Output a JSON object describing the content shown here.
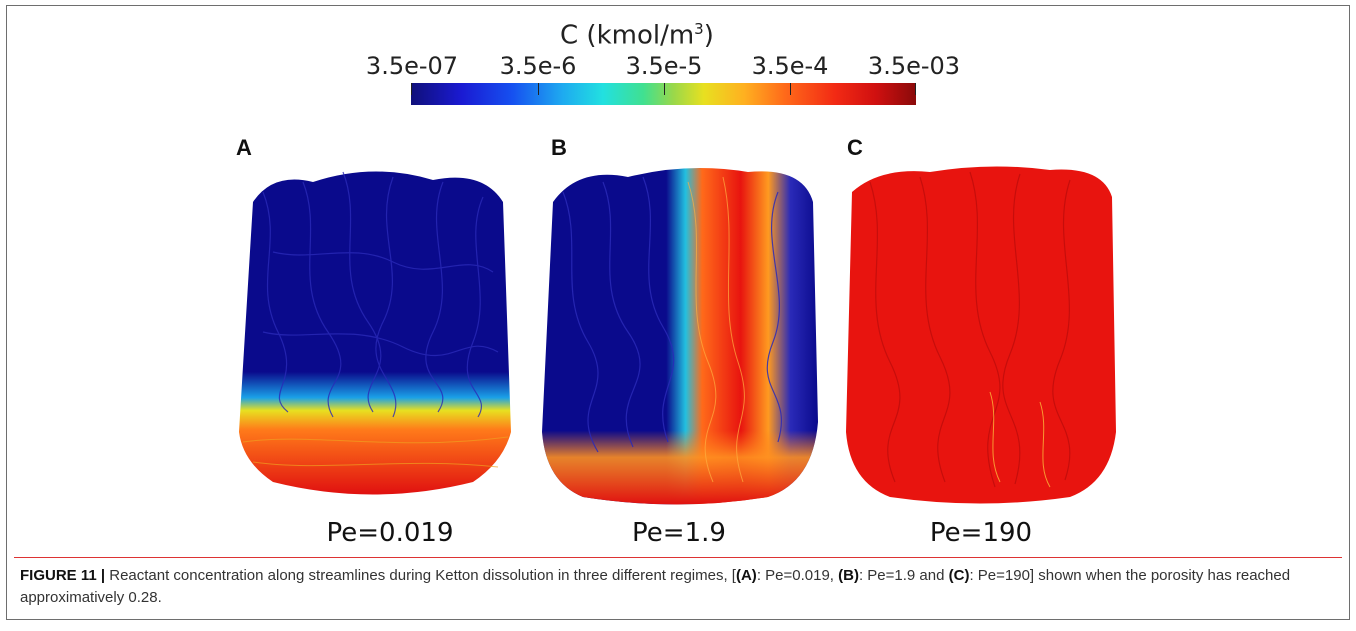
{
  "colorbar": {
    "title": "C (kmol/m",
    "title_sup": "3",
    "title_end": ")",
    "ticks": [
      "3.5e-07",
      "3.5e-6",
      "3.5e-5",
      "3.5e-4",
      "3.5e-03"
    ],
    "colormap": [
      "#10107a",
      "#1a1ad2",
      "#1650f0",
      "#1eaaf0",
      "#22e0e0",
      "#40e090",
      "#9ad84a",
      "#e8e020",
      "#ffb020",
      "#ff6a1a",
      "#f22a14",
      "#d01010",
      "#8a0a0a"
    ]
  },
  "panels": [
    {
      "letter": "A",
      "pe": "Pe=0.019"
    },
    {
      "letter": "B",
      "pe": "Pe=1.9"
    },
    {
      "letter": "C",
      "pe": "Pe=190"
    }
  ],
  "caption": {
    "figure_label": "FIGURE 11 |",
    "text_1": " Reactant concentration along streamlines during Ketton dissolution in three different regimes, [",
    "ref_a": "(A)",
    "text_2": ": Pe=0.019, ",
    "ref_b": "(B)",
    "text_3": ": Pe=1.9 and ",
    "ref_c": "(C)",
    "text_4": ": Pe=190] shown when the porosity has reached approximatively 0.28."
  },
  "colors": {
    "blue": "#0a0a8c",
    "red": "#e8140f",
    "accent_rule": "#dd3333"
  }
}
